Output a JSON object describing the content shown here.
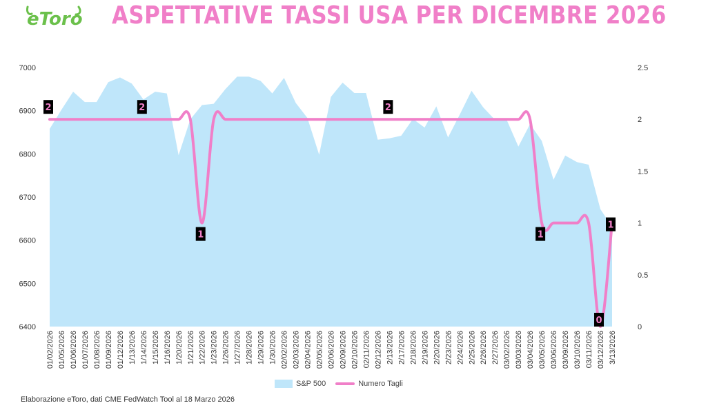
{
  "brand": {
    "logo_text": "eToro",
    "logo_color": "#6bc04b"
  },
  "header": {
    "title": "ASPETTATIVE TASSI USA PER DICEMBRE 2026",
    "title_color": "#f07fc8"
  },
  "footer": {
    "source": "Elaborazione eToro, dati CME FedWatch Tool al 18 Marzo 2026"
  },
  "chart_data": {
    "type": "area",
    "title": "ASPETTATIVE TASSI USA PER DICEMBRE 2026",
    "categories": [
      "01/02/2026",
      "01/05/2026",
      "01/06/2026",
      "01/07/2026",
      "01/08/2026",
      "01/09/2026",
      "01/12/2026",
      "1/13/2026",
      "1/14/2026",
      "1/15/2026",
      "1/16/2026",
      "1/20/2026",
      "1/21/2026",
      "1/22/2026",
      "1/23/2026",
      "1/26/2026",
      "1/27/2026",
      "1/28/2026",
      "1/29/2026",
      "1/30/2026",
      "02/02/2026",
      "02/03/2026",
      "02/04/2026",
      "02/05/2026",
      "02/06/2026",
      "02/09/2026",
      "02/10/2026",
      "02/11/2026",
      "02/12/2026",
      "2/13/2026",
      "2/17/2026",
      "2/18/2026",
      "2/19/2026",
      "2/20/2026",
      "2/23/2026",
      "2/24/2026",
      "2/25/2026",
      "2/26/2026",
      "2/27/2026",
      "03/02/2026",
      "03/03/2026",
      "03/04/2026",
      "03/05/2026",
      "03/06/2026",
      "03/09/2026",
      "03/10/2026",
      "03/11/2026",
      "03/12/2026",
      "3/13/2026"
    ],
    "y_left": {
      "min": 6400,
      "max": 7000,
      "ticks": [
        7000,
        6900,
        6800,
        6700,
        6600,
        6500,
        6400
      ]
    },
    "y_right": {
      "min": 0,
      "max": 2.5,
      "ticks": [
        "2.5",
        "2",
        "1.5",
        "1",
        "0.5",
        "0"
      ]
    },
    "series": [
      {
        "name": "S&P 500",
        "axis": "left",
        "color": "#bfe6fa",
        "values": [
          6858,
          6902,
          6944,
          6920,
          6920,
          6966,
          6977,
          6963,
          6926,
          6944,
          6940,
          6797,
          6880,
          6913,
          6916,
          6950,
          6979,
          6979,
          6969,
          6940,
          6976,
          6918,
          6883,
          6798,
          6932,
          6965,
          6941,
          6941,
          6833,
          6836,
          6842,
          6881,
          6861,
          6910,
          6838,
          6891,
          6946,
          6908,
          6879,
          6879,
          6817,
          6869,
          6830,
          6740,
          6796,
          6781,
          6775,
          6672,
          6631
        ]
      },
      {
        "name": "Numero Tagli",
        "axis": "right",
        "color": "#f07fc8",
        "values": [
          2,
          2,
          2,
          2,
          2,
          2,
          2,
          2,
          2,
          2,
          2,
          2,
          2,
          1,
          2,
          2,
          2,
          2,
          2,
          2,
          2,
          2,
          2,
          2,
          2,
          2,
          2,
          2,
          2,
          2,
          2,
          2,
          2,
          2,
          2,
          2,
          2,
          2,
          2,
          2,
          2,
          2,
          1,
          1,
          1,
          1,
          1,
          0,
          1
        ]
      }
    ],
    "data_labels": [
      {
        "index": 0,
        "text": "2"
      },
      {
        "index": 8,
        "text": "2"
      },
      {
        "index": 13,
        "text": "1"
      },
      {
        "index": 29,
        "text": "2"
      },
      {
        "index": 42,
        "text": "1"
      },
      {
        "index": 47,
        "text": "0"
      },
      {
        "index": 48,
        "text": "1"
      }
    ],
    "legend": {
      "position": "bottom",
      "items": [
        "S&P 500",
        "Numero Tagli"
      ]
    },
    "grid": false
  }
}
